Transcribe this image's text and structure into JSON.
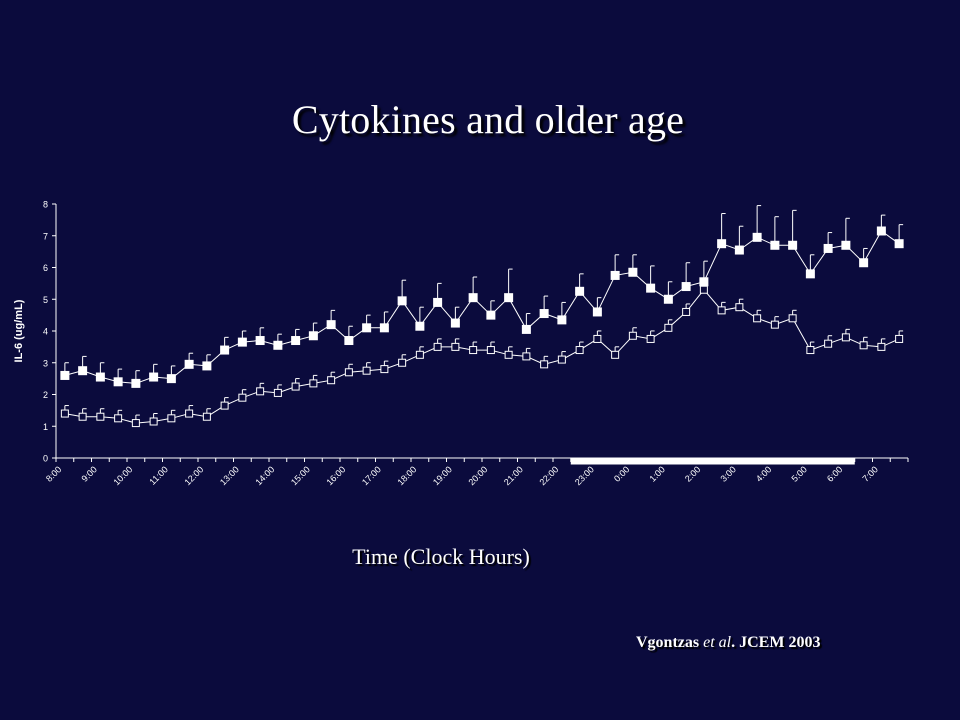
{
  "slide": {
    "title": "Cytokines and older age",
    "citation_author": "Vgontzas ",
    "citation_etal": "et al",
    "citation_rest": ". JCEM 2003"
  },
  "colors": {
    "background": "#0b0b3d",
    "foreground": "#ffffff"
  },
  "chart_data": {
    "type": "line",
    "title": "",
    "xlabel": "Time (Clock Hours)",
    "ylabel": "IL-6 (ug/mL)",
    "ylim": [
      0,
      8
    ],
    "yticks": [
      0,
      1,
      2,
      3,
      4,
      5,
      6,
      7,
      8
    ],
    "grid": false,
    "x_tick_labels": [
      "8:00",
      "9:00",
      "10:00",
      "11:00",
      "12:00",
      "13:00",
      "14:00",
      "15:00",
      "16:00",
      "17:00",
      "18:00",
      "19:00",
      "20:00",
      "21:00",
      "22:00",
      "23:00",
      "0:00",
      "1:00",
      "2:00",
      "3:00",
      "4:00",
      "5:00",
      "6:00",
      "7:00"
    ],
    "x_half_hour_points": 48,
    "sleep_period": {
      "start": "22:30",
      "end": "6:30"
    },
    "series": [
      {
        "marker": "filled-square",
        "values": [
          2.6,
          2.75,
          2.55,
          2.4,
          2.35,
          2.55,
          2.5,
          2.95,
          2.9,
          3.4,
          3.65,
          3.7,
          3.55,
          3.7,
          3.85,
          4.2,
          3.7,
          4.1,
          4.1,
          4.95,
          4.15,
          4.9,
          4.25,
          5.05,
          4.5,
          5.05,
          4.05,
          4.55,
          4.35,
          5.25,
          4.6,
          5.75,
          5.85,
          5.35,
          5.0,
          5.4,
          5.55,
          6.75,
          6.55,
          6.95,
          6.7,
          6.7,
          5.8,
          6.6,
          6.7,
          6.15,
          7.15,
          6.75
        ],
        "errors": [
          0.4,
          0.45,
          0.45,
          0.4,
          0.4,
          0.4,
          0.4,
          0.35,
          0.35,
          0.4,
          0.35,
          0.4,
          0.35,
          0.35,
          0.4,
          0.45,
          0.45,
          0.4,
          0.5,
          0.65,
          0.6,
          0.6,
          0.5,
          0.65,
          0.45,
          0.9,
          0.5,
          0.55,
          0.55,
          0.55,
          0.45,
          0.65,
          0.55,
          0.7,
          0.55,
          0.75,
          0.65,
          0.95,
          0.75,
          1.0,
          0.9,
          1.1,
          0.6,
          0.5,
          0.85,
          0.45,
          0.5,
          0.6
        ]
      },
      {
        "marker": "open-square",
        "values": [
          1.4,
          1.3,
          1.3,
          1.25,
          1.1,
          1.15,
          1.25,
          1.4,
          1.3,
          1.65,
          1.9,
          2.1,
          2.05,
          2.25,
          2.35,
          2.45,
          2.7,
          2.75,
          2.8,
          3.0,
          3.25,
          3.5,
          3.5,
          3.4,
          3.4,
          3.25,
          3.2,
          2.95,
          3.1,
          3.4,
          3.75,
          3.25,
          3.85,
          3.75,
          4.1,
          4.6,
          5.3,
          4.65,
          4.75,
          4.4,
          4.2,
          4.4,
          3.4,
          3.6,
          3.8,
          3.55,
          3.5,
          3.75
        ]
      }
    ]
  }
}
